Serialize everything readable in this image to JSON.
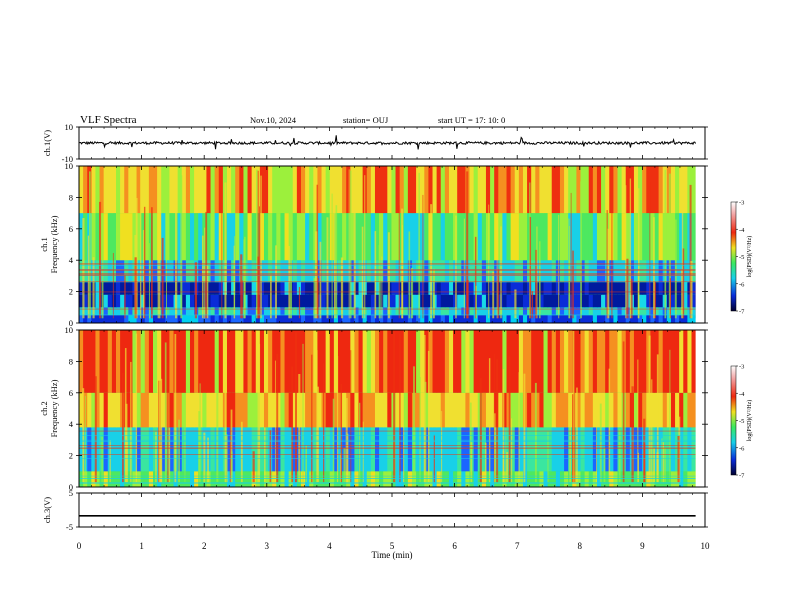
{
  "header": {
    "title": "VLF Spectra",
    "date": "Nov.10, 2024",
    "station": "station= OUJ",
    "start_ut": "start  UT =   17: 10: 0"
  },
  "chart_data": [
    {
      "type": "line",
      "panel": "ch1-waveform",
      "ylabel": "ch.1(V)",
      "ylim": [
        -10,
        10
      ],
      "yticks": [
        "10",
        "-10"
      ],
      "baseline": 0,
      "color": "#000000"
    },
    {
      "type": "heatmap",
      "panel": "ch1-spectrogram",
      "ylabel": "ch.1\nFrequency (kHz)",
      "ylabel_line1": "ch.1",
      "ylabel_line2": "Frequency (kHz)",
      "ylim": [
        0,
        10
      ],
      "yticks": [
        "0",
        "2",
        "4",
        "6",
        "8",
        "10"
      ],
      "xlim": [
        0,
        10
      ],
      "colorbar": {
        "label": "log(PSD)(V²/Hz)",
        "range": [
          -7,
          -3
        ],
        "ticks": [
          "-3",
          "-4",
          "-5",
          "-6",
          "-7"
        ]
      },
      "bands": [
        {
          "from": 0,
          "to": 0.5,
          "level": "blue"
        },
        {
          "from": 0.5,
          "to": 1.0,
          "level": "cyan"
        },
        {
          "from": 1.0,
          "to": 1.8,
          "level": "darkblue"
        },
        {
          "from": 1.8,
          "to": 2.6,
          "level": "darkblue"
        },
        {
          "from": 2.6,
          "to": 4.0,
          "level": "cyan"
        },
        {
          "from": 4.0,
          "to": 7.0,
          "level": "green"
        },
        {
          "from": 7.0,
          "to": 10,
          "level": "yellow-red"
        }
      ]
    },
    {
      "type": "heatmap",
      "panel": "ch2-spectrogram",
      "ylabel_line1": "ch.2",
      "ylabel_line2": "Frequency (kHz)",
      "ylim": [
        0,
        10
      ],
      "yticks": [
        "0",
        "2",
        "4",
        "6",
        "8",
        "10"
      ],
      "xlim": [
        0,
        10
      ],
      "colorbar": {
        "label": "log(PSD)(V²/Hz)",
        "range": [
          -7,
          -3
        ],
        "ticks": [
          "-3",
          "-4",
          "-5",
          "-6",
          "-7"
        ]
      },
      "bands": [
        {
          "from": 0,
          "to": 1.0,
          "level": "green"
        },
        {
          "from": 1.0,
          "to": 3.8,
          "level": "cyan"
        },
        {
          "from": 3.8,
          "to": 6.0,
          "level": "yellow"
        },
        {
          "from": 6.0,
          "to": 10,
          "level": "red"
        }
      ]
    },
    {
      "type": "line",
      "panel": "ch3-waveform",
      "ylabel": "ch.3(V)",
      "ylim": [
        -5,
        5
      ],
      "yticks": [
        "5",
        "-5"
      ],
      "x": [
        0,
        9.85
      ],
      "y": [
        -1.7,
        -1.7
      ],
      "color": "#000000"
    }
  ],
  "xaxis": {
    "label": "Time (min)",
    "range": [
      0,
      10
    ],
    "ticks": [
      "0",
      "1",
      "2",
      "3",
      "4",
      "5",
      "6",
      "7",
      "8",
      "9",
      "10"
    ]
  }
}
